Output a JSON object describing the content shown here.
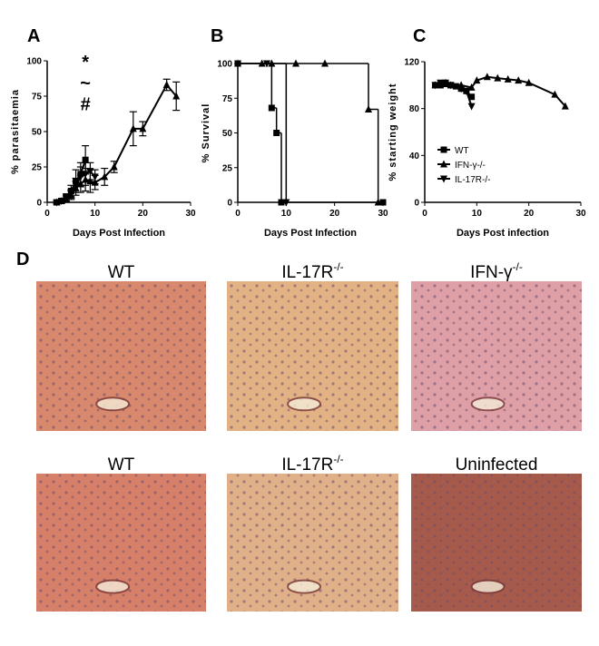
{
  "panel_labels": [
    "A",
    "B",
    "C",
    "D"
  ],
  "chart_data": [
    {
      "type": "line",
      "x_label": "Days Post Infection",
      "y_label": "% parasitaemia",
      "xlim": [
        0,
        30
      ],
      "xticks": [
        0,
        10,
        20,
        30
      ],
      "ylim": [
        0,
        100
      ],
      "yticks": [
        0,
        25,
        50,
        75,
        100
      ],
      "series": [
        {
          "color": "#000000",
          "marker": "triangle",
          "x": [
            2,
            3,
            4,
            5,
            6,
            7,
            8,
            9,
            10,
            12,
            14,
            18,
            20,
            25,
            27
          ],
          "values": [
            0,
            1,
            2,
            5,
            10,
            13,
            16,
            15,
            14,
            18,
            25,
            52,
            52,
            83,
            75
          ],
          "error": [
            1,
            1,
            2,
            3,
            5,
            6,
            8,
            8,
            5,
            6,
            4,
            12,
            5,
            4,
            10
          ]
        },
        {
          "color": "#000000",
          "marker": "square",
          "x": [
            2,
            3,
            4,
            5,
            6,
            7,
            8
          ],
          "values": [
            0,
            1,
            4,
            8,
            15,
            20,
            30
          ],
          "error": [
            1,
            1,
            2,
            4,
            8,
            8,
            10
          ]
        },
        {
          "color": "#000000",
          "marker": "triangle-down",
          "x": [
            2,
            3,
            4,
            5,
            6,
            7,
            8,
            9,
            10
          ],
          "values": [
            0,
            1,
            3,
            6,
            12,
            18,
            20,
            22,
            18
          ],
          "error": [
            1,
            1,
            2,
            3,
            5,
            7,
            8,
            6,
            5
          ]
        }
      ],
      "annotations": [
        {
          "text": "*",
          "x": 8,
          "y": 95
        },
        {
          "text": "~",
          "x": 8,
          "y": 80
        },
        {
          "text": "#",
          "x": 8,
          "y": 65
        }
      ]
    },
    {
      "type": "step",
      "x_label": "Days Post Infection",
      "y_label": "% Survival",
      "xlim": [
        0,
        30
      ],
      "xticks": [
        0,
        10,
        20,
        30
      ],
      "ylim": [
        0,
        100
      ],
      "yticks": [
        0,
        25,
        50,
        75,
        100
      ],
      "series": [
        {
          "color": "#000000",
          "marker": "square",
          "x": [
            0,
            7,
            8,
            9,
            30
          ],
          "values": [
            100,
            68,
            50,
            0,
            0
          ]
        },
        {
          "color": "#000000",
          "marker": "triangle-down",
          "x": [
            0,
            6,
            10
          ],
          "values": [
            100,
            100,
            0
          ]
        },
        {
          "color": "#000000",
          "marker": "triangle",
          "x": [
            0,
            5,
            7,
            12,
            18,
            27,
            29
          ],
          "values": [
            100,
            100,
            100,
            100,
            100,
            67,
            0
          ]
        }
      ]
    },
    {
      "type": "line",
      "x_label": "Days Post infection",
      "y_label": "% starting weight",
      "xlim": [
        0,
        30
      ],
      "xticks": [
        0,
        10,
        20,
        30
      ],
      "ylim": [
        0,
        120
      ],
      "yticks": [
        0,
        40,
        80,
        120
      ],
      "legend": "lower left",
      "series": [
        {
          "name": "WT",
          "color": "#000000",
          "marker": "square",
          "x": [
            2,
            3,
            4,
            5,
            6,
            7,
            8,
            9
          ],
          "values": [
            100,
            100,
            101,
            100,
            99,
            97,
            95,
            90
          ]
        },
        {
          "name": "IFN-γ-/-",
          "color": "#000000",
          "marker": "triangle",
          "x": [
            2,
            3,
            4,
            5,
            7,
            9,
            10,
            12,
            14,
            16,
            18,
            20,
            25,
            27
          ],
          "values": [
            100,
            100,
            102,
            100,
            100,
            98,
            104,
            107,
            106,
            105,
            104,
            102,
            92,
            82
          ]
        },
        {
          "name": "IL-17R-/-",
          "color": "#000000",
          "marker": "triangle-down",
          "x": [
            2,
            3,
            4,
            5,
            7,
            8,
            9
          ],
          "values": [
            100,
            102,
            102,
            100,
            97,
            95,
            82
          ]
        }
      ]
    }
  ],
  "images": [
    {
      "label": "WT"
    },
    {
      "label": "IL-17R",
      "superscript": "-/-"
    },
    {
      "label": "IFN-γ",
      "superscript": "-/-"
    },
    {
      "label": "WT"
    },
    {
      "label": "IL-17R",
      "superscript": "-/-"
    },
    {
      "label": "Uninfected"
    }
  ]
}
